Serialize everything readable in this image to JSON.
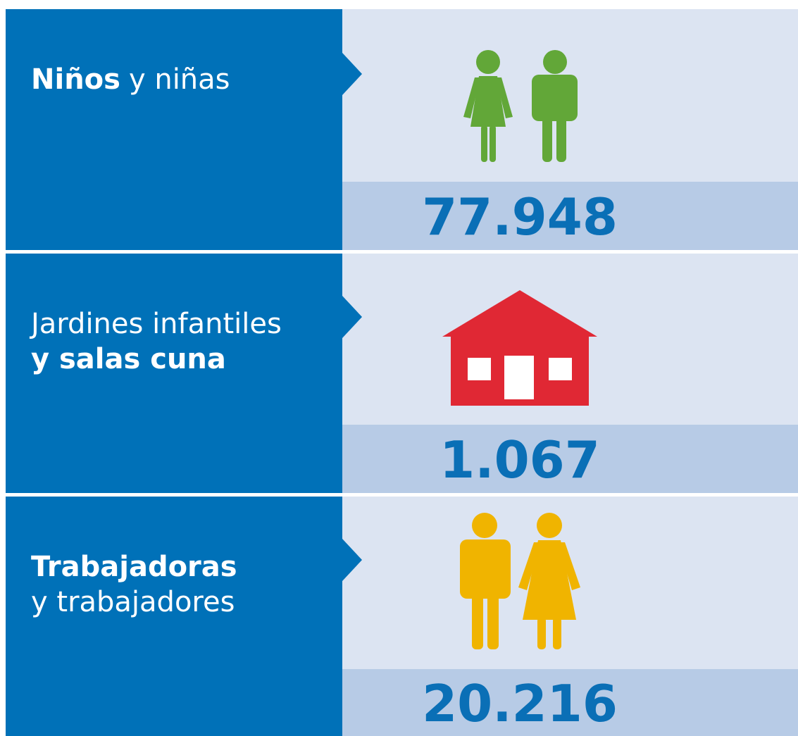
{
  "rows": [
    {
      "lines": [
        [
          {
            "text": "Niños",
            "bold": true
          },
          {
            "text": "y niñas",
            "bold": false
          }
        ]
      ],
      "value": "77.948"
    },
    {
      "lines": [
        [
          {
            "text": "Jardines infantiles",
            "bold": false
          }
        ],
        [
          {
            "text": "y salas cuna",
            "bold": true
          }
        ]
      ],
      "value": "1.067"
    },
    {
      "lines": [
        [
          {
            "text": "Trabajadoras",
            "bold": true
          }
        ],
        [
          {
            "text": "y trabajadores",
            "bold": false
          }
        ]
      ],
      "value": "20.216"
    }
  ]
}
